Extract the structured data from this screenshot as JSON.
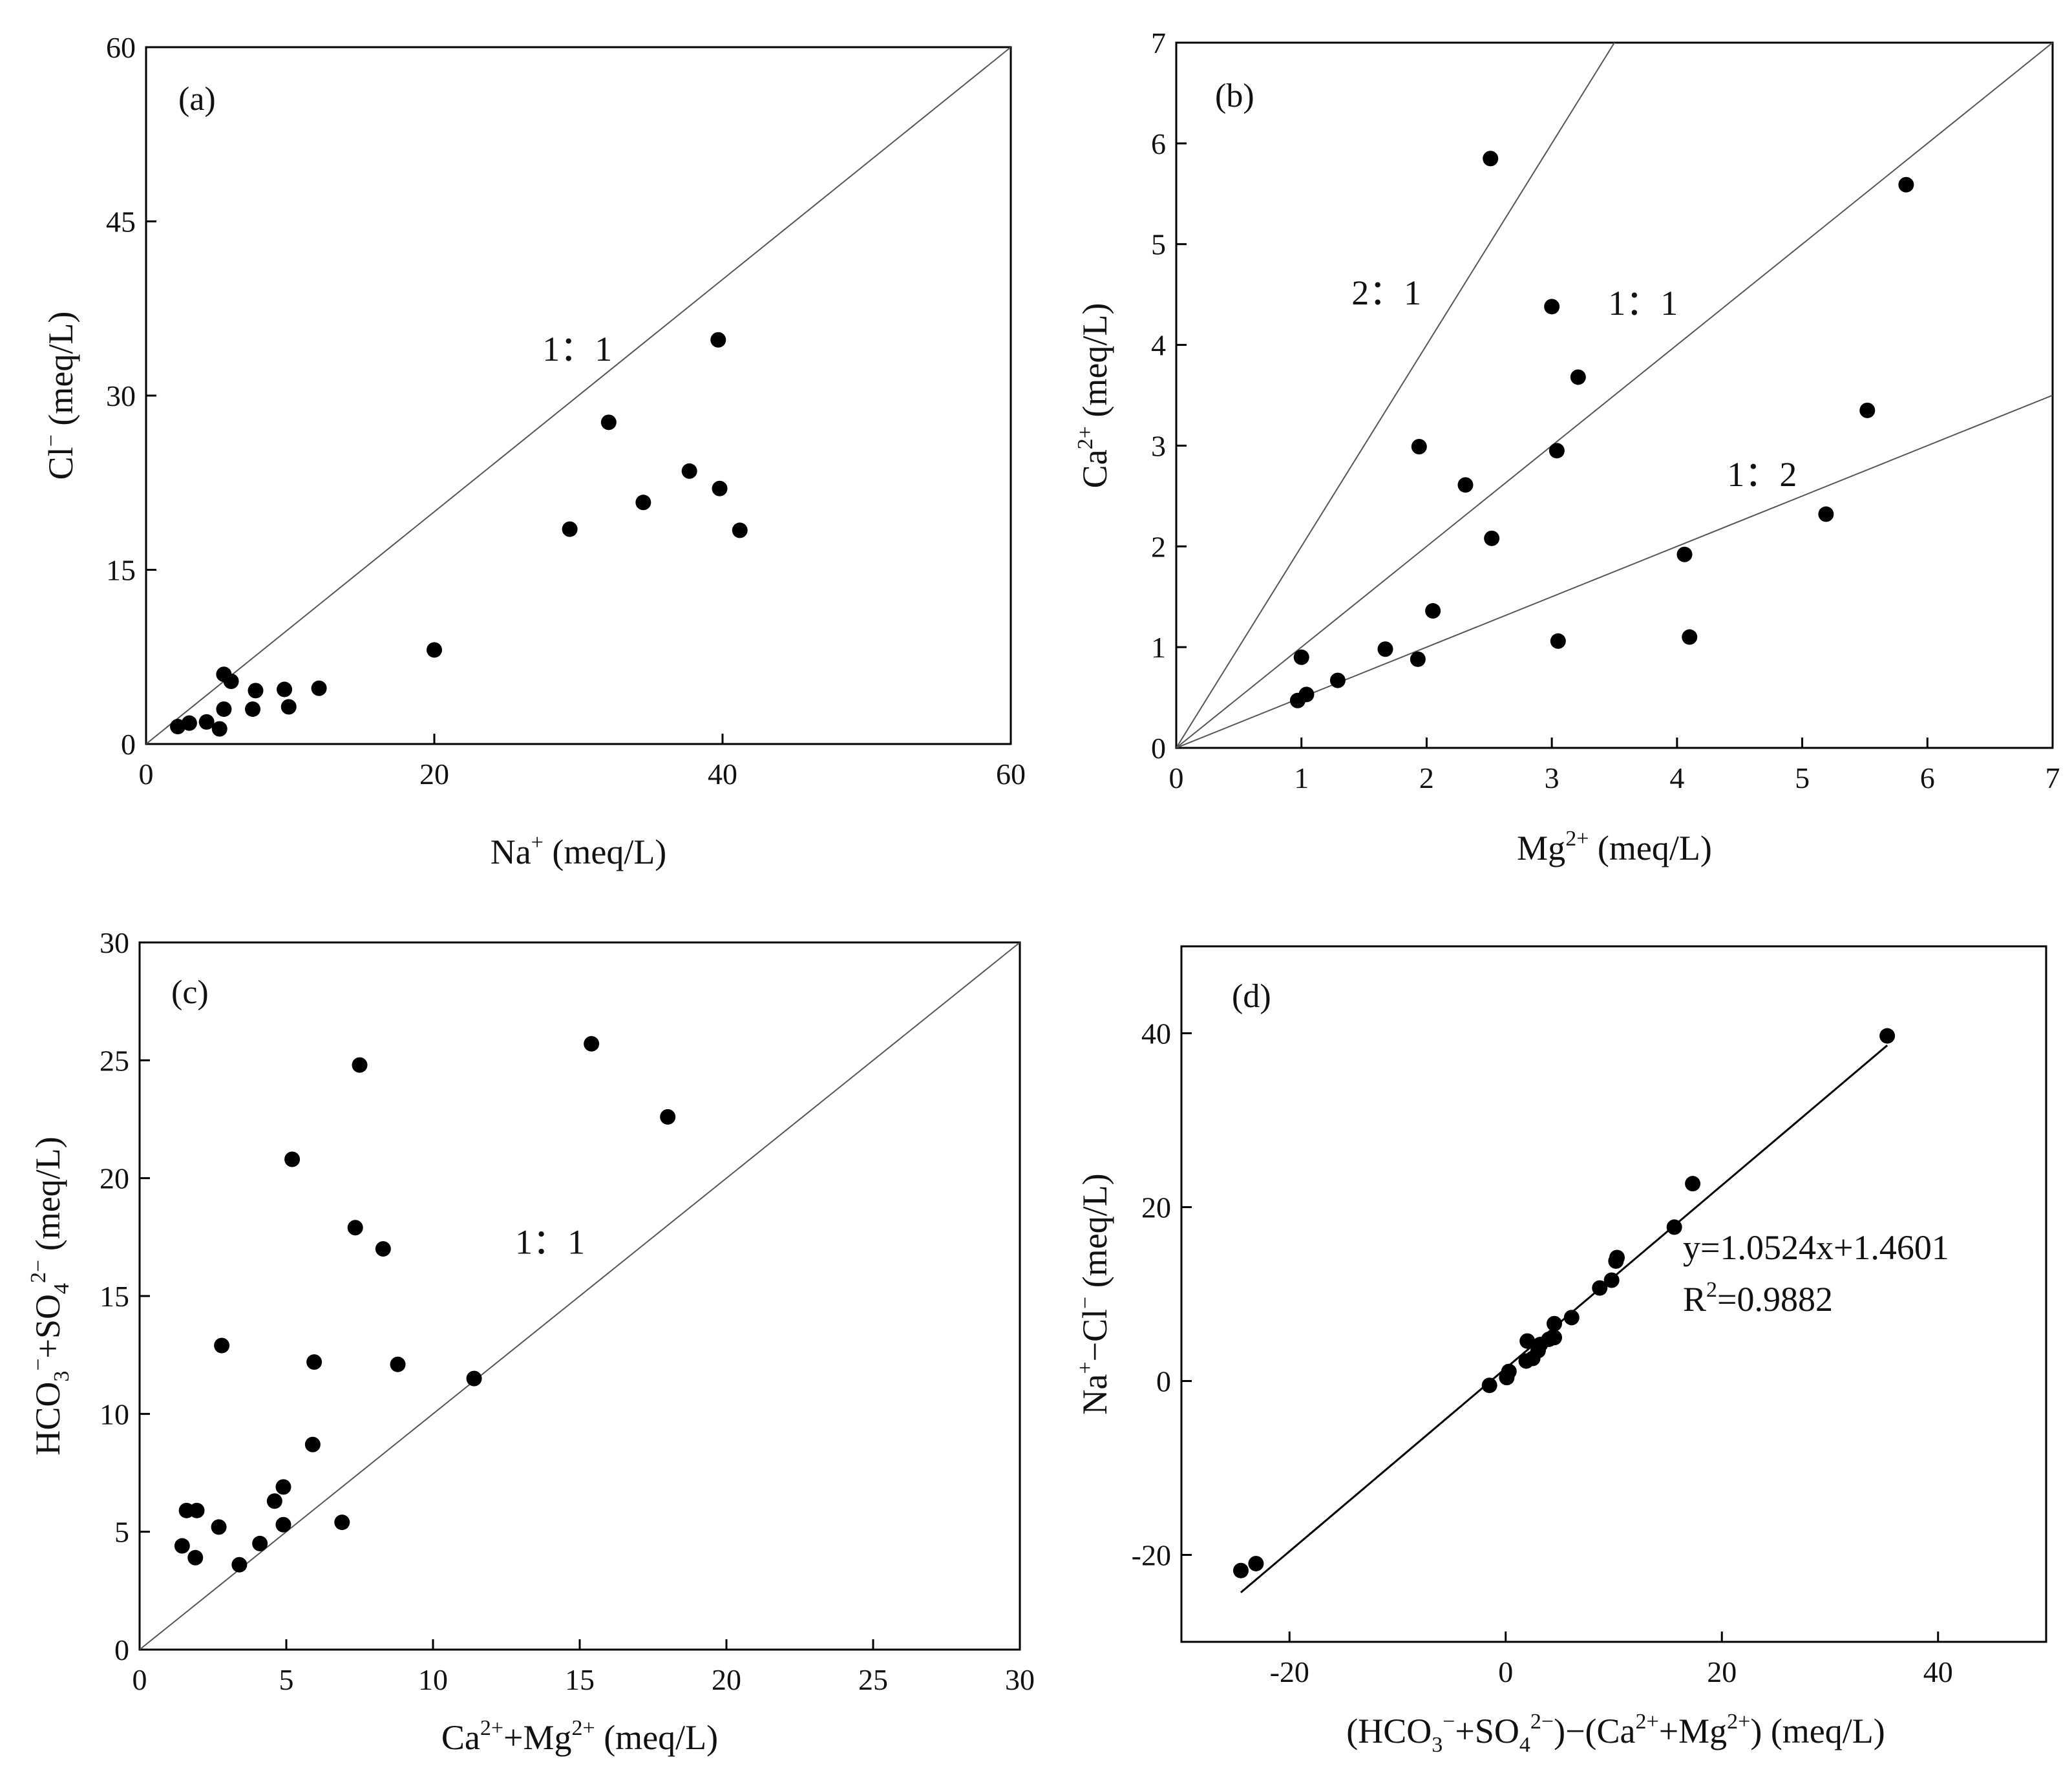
{
  "chart_data": [
    {
      "id": "a",
      "type": "scatter",
      "panel_label": "(a)",
      "xlabel": "Na⁺ (meq/L)",
      "ylabel": "Cl⁻ (meq/L)",
      "xlim": [
        0,
        60
      ],
      "ylim": [
        0,
        60
      ],
      "xticks": [
        0,
        20,
        40,
        60
      ],
      "yticks": [
        0,
        15,
        30,
        45,
        60
      ],
      "lines": [
        {
          "label": "1：1",
          "slope": 1,
          "intercept": 0,
          "label_at": [
            27.5,
            33
          ]
        }
      ],
      "points": [
        [
          2.2,
          1.5
        ],
        [
          3.0,
          1.8
        ],
        [
          4.2,
          1.9
        ],
        [
          5.1,
          1.3
        ],
        [
          5.4,
          3.0
        ],
        [
          5.4,
          6.0
        ],
        [
          5.9,
          5.4
        ],
        [
          7.4,
          3.0
        ],
        [
          7.6,
          4.6
        ],
        [
          9.6,
          4.7
        ],
        [
          9.9,
          3.2
        ],
        [
          12.0,
          4.8
        ],
        [
          20.0,
          8.1
        ],
        [
          29.4,
          18.5
        ],
        [
          32.1,
          27.7
        ],
        [
          34.5,
          20.8
        ],
        [
          37.7,
          23.5
        ],
        [
          39.7,
          34.8
        ],
        [
          39.8,
          22.0
        ],
        [
          41.2,
          18.4
        ]
      ]
    },
    {
      "id": "b",
      "type": "scatter",
      "panel_label": "(b)",
      "xlabel": "Mg²⁺ (meq/L)",
      "ylabel": "Ca²⁺ (meq/L)",
      "xlim": [
        0,
        7
      ],
      "ylim": [
        0,
        7
      ],
      "xticks": [
        0,
        1,
        2,
        3,
        4,
        5,
        6,
        7
      ],
      "yticks": [
        0,
        1,
        2,
        3,
        4,
        5,
        6,
        7
      ],
      "lines": [
        {
          "label": "2：1",
          "slope": 2,
          "intercept": 0,
          "label_at": [
            1.4,
            4.4
          ]
        },
        {
          "label": "1：1",
          "slope": 1,
          "intercept": 0,
          "label_at": [
            3.45,
            4.3
          ]
        },
        {
          "label": "1：2",
          "slope": 0.5,
          "intercept": 0,
          "label_at": [
            4.4,
            2.6
          ]
        }
      ],
      "points": [
        [
          0.97,
          0.47
        ],
        [
          1.0,
          0.9
        ],
        [
          1.04,
          0.53
        ],
        [
          1.29,
          0.67
        ],
        [
          1.67,
          0.98
        ],
        [
          1.93,
          0.88
        ],
        [
          1.94,
          2.99
        ],
        [
          2.05,
          1.36
        ],
        [
          2.31,
          2.61
        ],
        [
          2.51,
          5.85
        ],
        [
          2.52,
          2.08
        ],
        [
          3.0,
          4.38
        ],
        [
          3.04,
          2.95
        ],
        [
          3.05,
          1.06
        ],
        [
          3.21,
          3.68
        ],
        [
          4.06,
          1.92
        ],
        [
          4.1,
          1.1
        ],
        [
          5.19,
          2.32
        ],
        [
          5.52,
          3.35
        ],
        [
          5.83,
          5.59
        ]
      ]
    },
    {
      "id": "c",
      "type": "scatter",
      "panel_label": "(c)",
      "xlabel": "Ca²⁺+Mg²⁺ (meq/L)",
      "ylabel": "HCO₃⁻+SO₄²⁻ (meq/L)",
      "xlim": [
        0,
        30
      ],
      "ylim": [
        0,
        30
      ],
      "xticks": [
        0,
        5,
        10,
        15,
        20,
        25,
        30
      ],
      "yticks": [
        0,
        5,
        10,
        15,
        20,
        25,
        30
      ],
      "lines": [
        {
          "label": "1：1",
          "slope": 1,
          "intercept": 0,
          "label_at": [
            12.8,
            16.8
          ]
        }
      ],
      "points": [
        [
          1.45,
          4.4
        ],
        [
          1.6,
          5.9
        ],
        [
          1.9,
          3.9
        ],
        [
          1.95,
          5.9
        ],
        [
          2.7,
          5.2
        ],
        [
          2.8,
          12.9
        ],
        [
          3.4,
          3.6
        ],
        [
          4.1,
          4.5
        ],
        [
          4.6,
          6.3
        ],
        [
          4.9,
          5.3
        ],
        [
          4.9,
          6.9
        ],
        [
          5.2,
          20.8
        ],
        [
          5.9,
          8.7
        ],
        [
          5.95,
          12.2
        ],
        [
          6.9,
          5.4
        ],
        [
          7.35,
          17.9
        ],
        [
          7.5,
          24.8
        ],
        [
          8.3,
          17.0
        ],
        [
          8.8,
          12.1
        ],
        [
          11.4,
          11.5
        ],
        [
          15.4,
          25.7
        ],
        [
          18.0,
          22.6
        ]
      ]
    },
    {
      "id": "d",
      "type": "scatter",
      "panel_label": "(d)",
      "xlabel": "(HCO₃⁻+SO₄²⁻)−(Ca²⁺+Mg²⁺) (meq/L)",
      "ylabel": "Na⁺−Cl⁻ (meq/L)",
      "xlim": [
        -30,
        50
      ],
      "ylim": [
        -30,
        50
      ],
      "xticks": [
        -20,
        0,
        20,
        40
      ],
      "yticks": [
        -20,
        0,
        20,
        40
      ],
      "fit": {
        "slope": 1.0524,
        "intercept": 1.4601,
        "x_range": [
          -24.5,
          35.3
        ],
        "r2": 0.9882
      },
      "annotations": [
        "y=1.0524x+1.4601",
        "R²=0.9882"
      ],
      "points": [
        [
          -24.5,
          -21.8
        ],
        [
          -23.1,
          -21.0
        ],
        [
          -1.5,
          -0.5
        ],
        [
          0.1,
          0.4
        ],
        [
          0.3,
          1.1
        ],
        [
          1.9,
          2.3
        ],
        [
          2.0,
          4.6
        ],
        [
          2.5,
          2.6
        ],
        [
          3.0,
          3.5
        ],
        [
          3.2,
          4.2
        ],
        [
          4.0,
          4.8
        ],
        [
          4.5,
          5.0
        ],
        [
          4.5,
          6.6
        ],
        [
          6.1,
          7.3
        ],
        [
          8.7,
          10.7
        ],
        [
          9.8,
          11.6
        ],
        [
          10.2,
          13.8
        ],
        [
          10.3,
          14.2
        ],
        [
          15.6,
          17.7
        ],
        [
          17.3,
          22.7
        ],
        [
          35.3,
          39.7
        ]
      ]
    }
  ]
}
